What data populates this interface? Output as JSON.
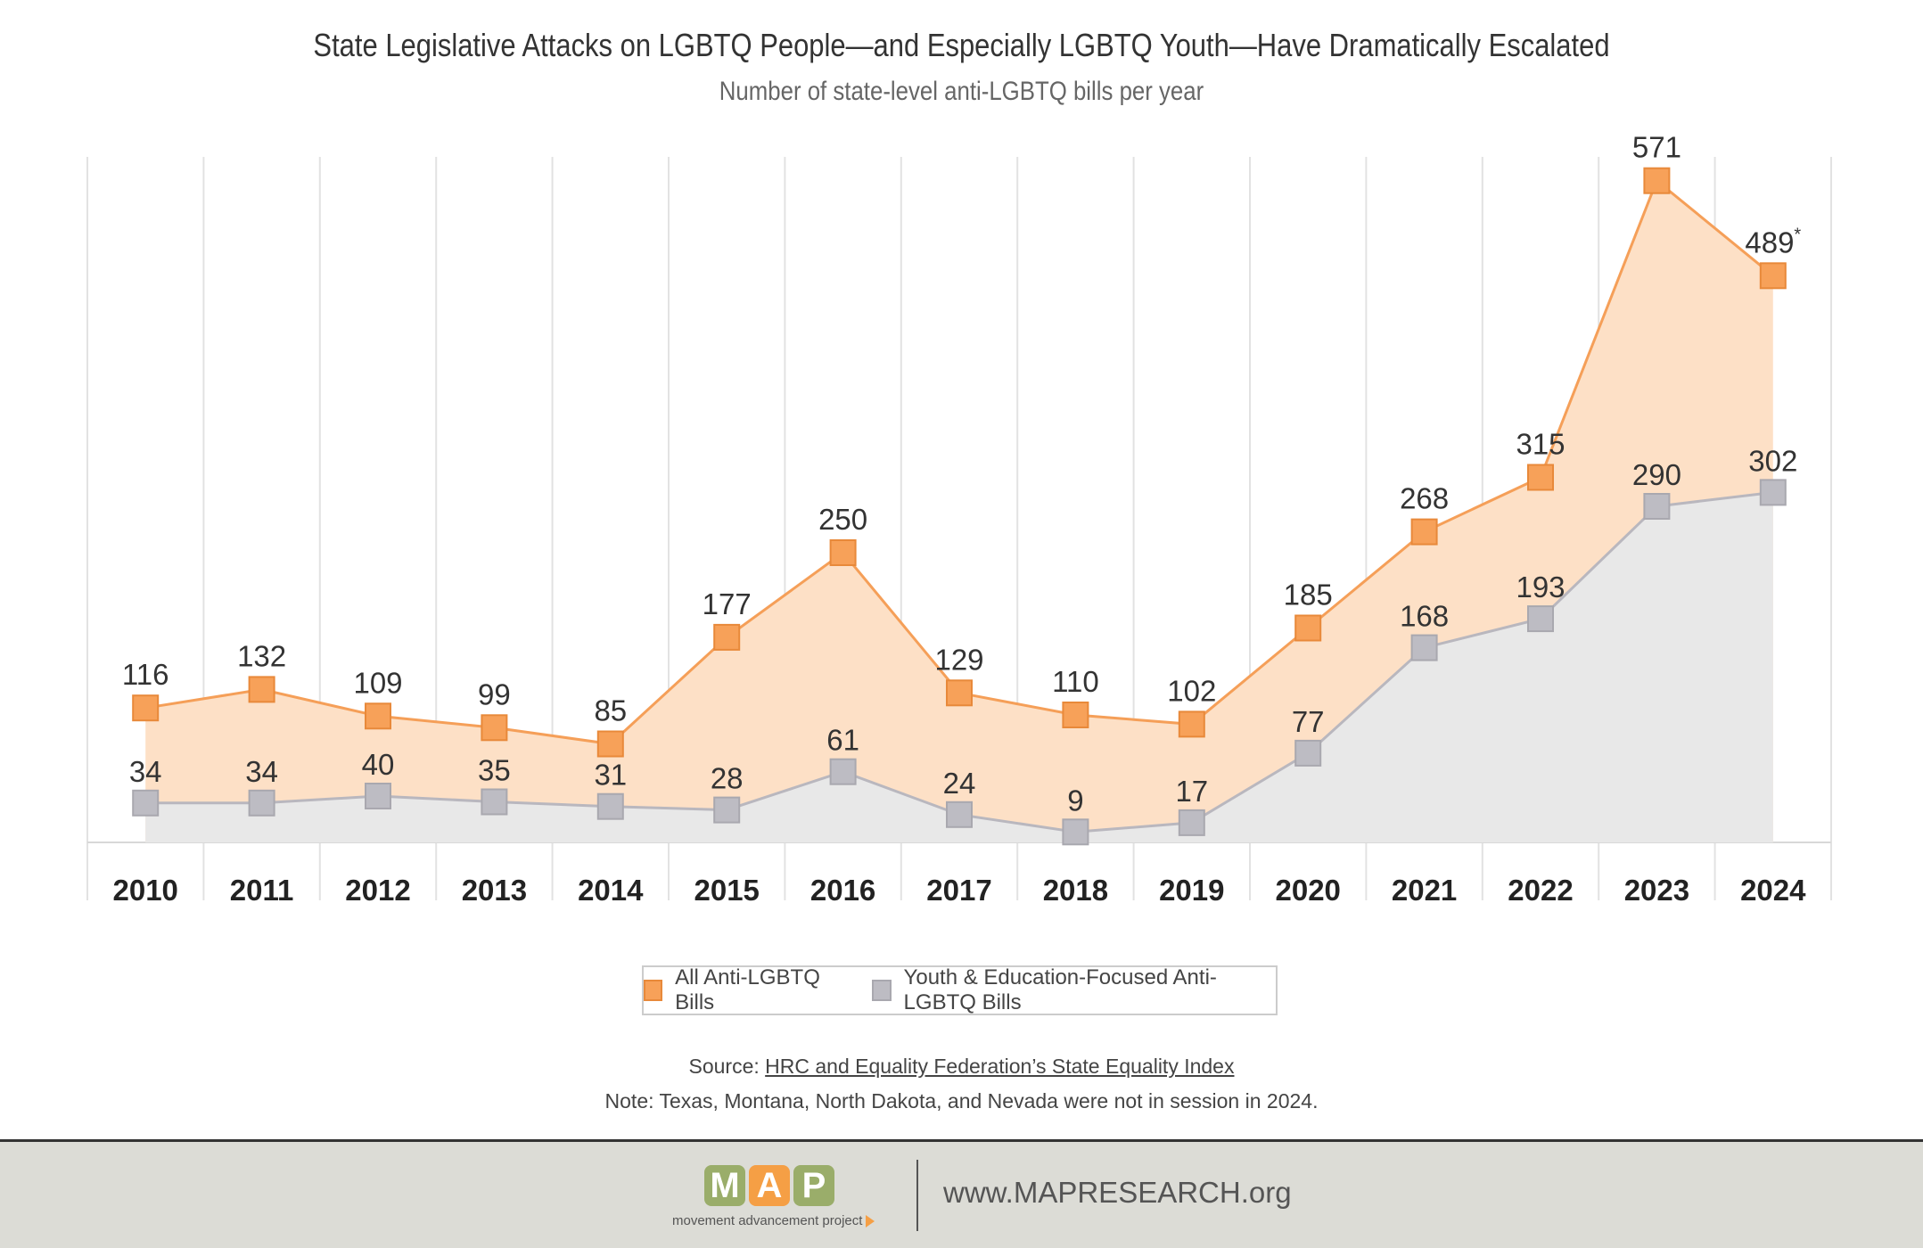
{
  "chart_data": {
    "type": "area",
    "title": "State Legislative Attacks on LGBTQ People—and Especially LGBTQ Youth—Have Dramatically Escalated",
    "subtitle": "Number of state-level anti-LGBTQ bills per year",
    "categories": [
      "2010",
      "2011",
      "2012",
      "2013",
      "2014",
      "2015",
      "2016",
      "2017",
      "2018",
      "2019",
      "2020",
      "2021",
      "2022",
      "2023",
      "2024"
    ],
    "series": [
      {
        "name": "All Anti-LGBTQ Bills",
        "values": [
          116,
          132,
          109,
          99,
          85,
          177,
          250,
          129,
          110,
          102,
          185,
          268,
          315,
          571,
          489
        ],
        "line_color": "#f59f58",
        "fill_color": "#fde0c6",
        "marker_color": "#f7a159",
        "label_suffix_last": "*"
      },
      {
        "name": "Youth & Education-Focused Anti-LGBTQ Bills",
        "values": [
          34,
          34,
          40,
          35,
          31,
          28,
          61,
          24,
          9,
          17,
          77,
          168,
          193,
          290,
          302
        ],
        "line_color": "#b9b7be",
        "fill_color": "#e8e8e8",
        "marker_color": "#bdbcc3"
      }
    ],
    "ylim": [
      0,
      600
    ],
    "grid": "vertical",
    "legend_position": "bottom-center"
  },
  "legend": {
    "all_label": "All Anti-LGBTQ Bills",
    "youth_label": "Youth & Education-Focused Anti-LGBTQ Bills"
  },
  "source": {
    "prefix": "Source: ",
    "link_text": "HRC and Equality Federation’s State Equality Index"
  },
  "note": "Note: Texas, Montana, North Dakota, and Nevada were not in session in 2024.",
  "footer": {
    "logo_letters": [
      "M",
      "A",
      "P"
    ],
    "logo_colors": [
      "#9aad6a",
      "#f59f45",
      "#9aad6a"
    ],
    "logo_tagline": "movement advancement project",
    "website": "www.MAPRESEARCH.org"
  }
}
